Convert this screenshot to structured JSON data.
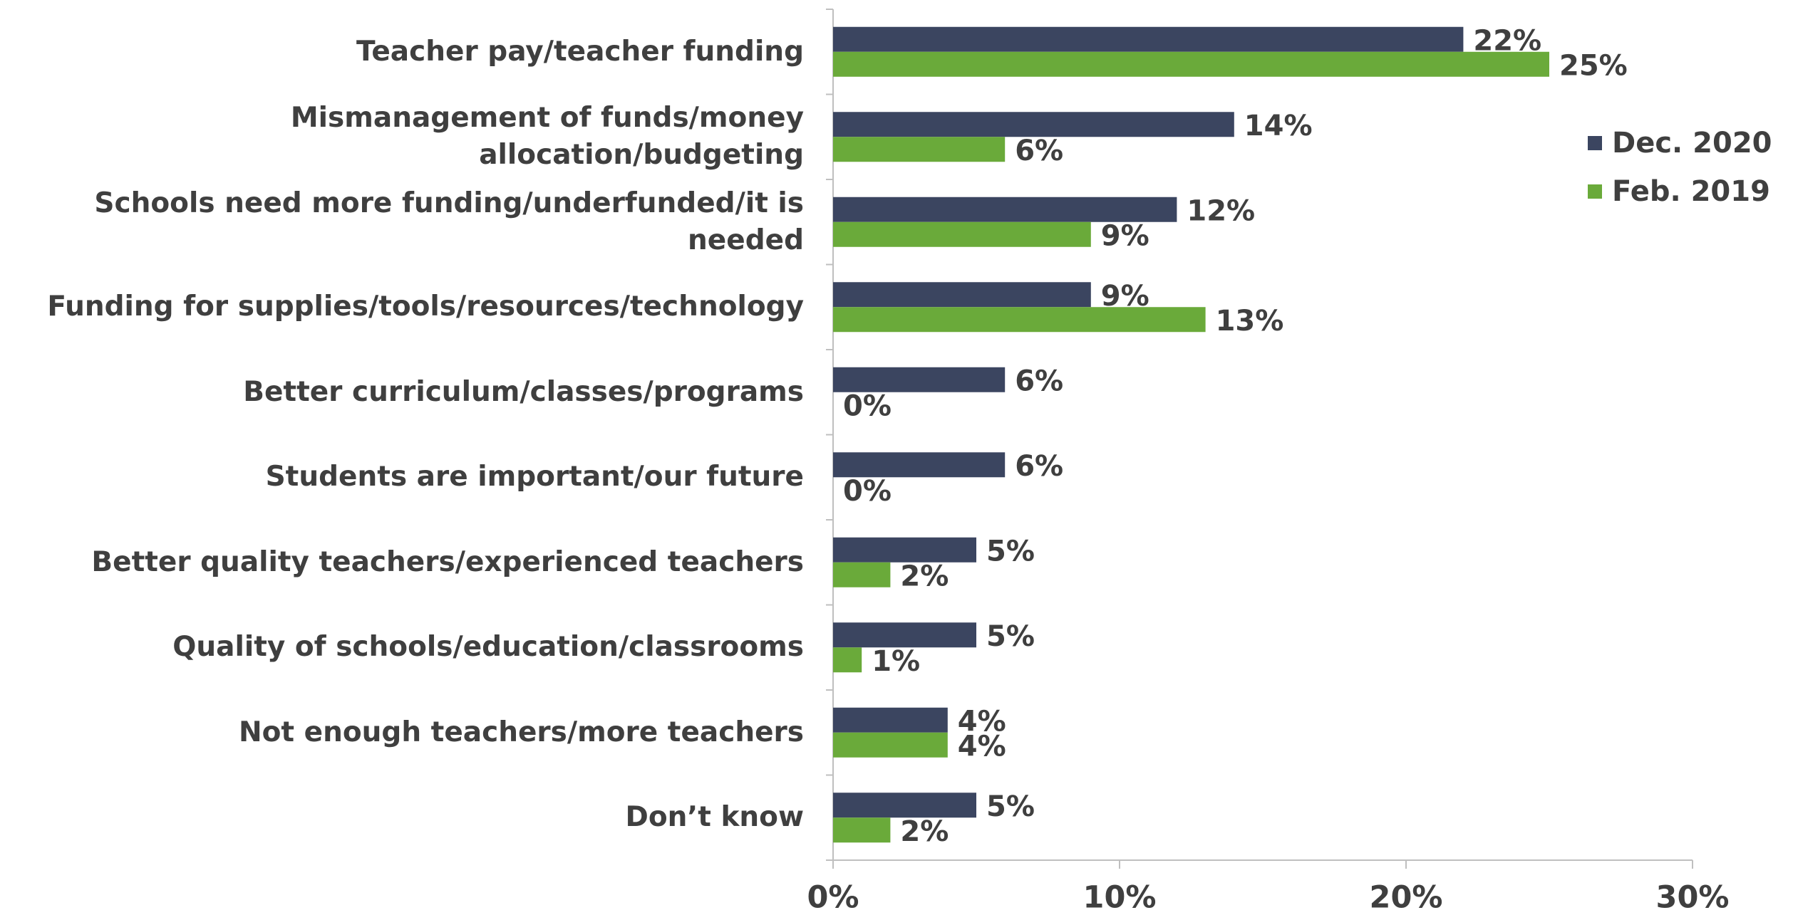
{
  "chart_data": {
    "type": "bar",
    "orientation": "horizontal",
    "categories": [
      "Teacher pay/teacher funding",
      "Mismanagement of funds/money allocation/budgeting",
      "Schools need more funding/underfunded/it is needed",
      "Funding for supplies/tools/resources/technology",
      "Better curriculum/classes/programs",
      "Students are important/our future",
      "Better quality teachers/experienced teachers",
      "Quality of schools/education/classrooms",
      "Not enough teachers/more teachers",
      "Don’t know"
    ],
    "series": [
      {
        "name": "Dec. 2020",
        "color": "#3b4560",
        "values": [
          22,
          14,
          12,
          9,
          6,
          6,
          5,
          5,
          4,
          5
        ],
        "value_labels": [
          "22%",
          "14%",
          "12%",
          "9%",
          "6%",
          "6%",
          "5%",
          "5%",
          "4%",
          "5%"
        ]
      },
      {
        "name": "Feb. 2019",
        "color": "#6aaa3a",
        "values": [
          25,
          6,
          9,
          13,
          0,
          0,
          2,
          1,
          4,
          2
        ],
        "value_labels": [
          "25%",
          "6%",
          "9%",
          "13%",
          "0%",
          "0%",
          "2%",
          "1%",
          "4%",
          "2%"
        ]
      }
    ],
    "xlim": [
      0,
      30
    ],
    "xticks": [
      {
        "value": 0,
        "label": "0%"
      },
      {
        "value": 10,
        "label": "10%"
      },
      {
        "value": 20,
        "label": "20%"
      },
      {
        "value": 30,
        "label": "30%"
      }
    ],
    "legend": "right"
  }
}
